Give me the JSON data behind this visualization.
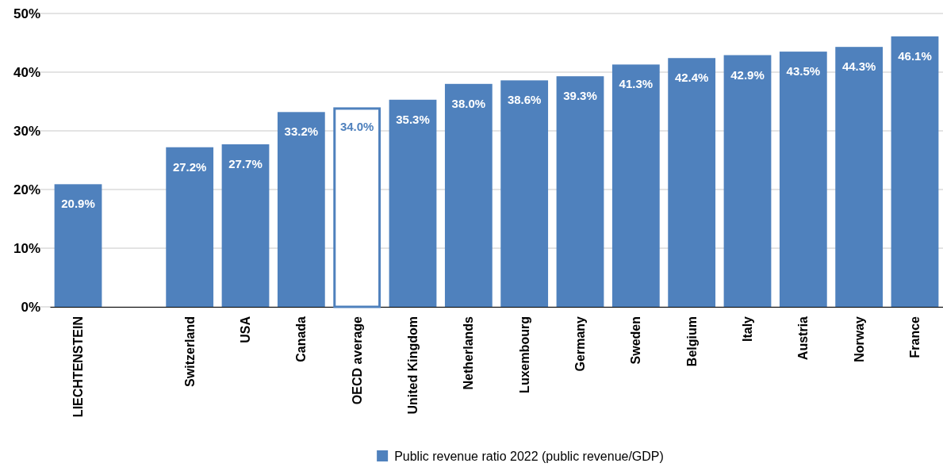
{
  "chart_data": {
    "type": "bar",
    "categories": [
      "LIECHTENSTEIN",
      null,
      "Switzerland",
      "USA",
      "Canada",
      "OECD average",
      "United Kingdom",
      "Netherlands",
      "Luxembourg",
      "Germany",
      "Sweden",
      "Belgium",
      "Italy",
      "Austria",
      "Norway",
      "France"
    ],
    "series": [
      {
        "name": "Public revenue ratio 2022 (public revenue/GDP)",
        "color": "#4f81bd",
        "values": [
          20.9,
          null,
          27.2,
          27.7,
          33.2,
          34.0,
          35.3,
          38.0,
          38.6,
          39.3,
          41.3,
          42.4,
          42.9,
          43.5,
          44.3,
          46.1
        ],
        "value_labels": [
          "20.9%",
          null,
          "27.2%",
          "27.7%",
          "33.2%",
          "34.0%",
          "35.3%",
          "38.0%",
          "38.6%",
          "39.3%",
          "41.3%",
          "42.4%",
          "42.9%",
          "43.5%",
          "44.3%",
          "46.1%"
        ],
        "colors": [
          "#4f81bd",
          null,
          "#4f81bd",
          "#4f81bd",
          "#4f81bd",
          "#ffffff",
          "#4f81bd",
          "#4f81bd",
          "#4f81bd",
          "#4f81bd",
          "#4f81bd",
          "#4f81bd",
          "#4f81bd",
          "#4f81bd",
          "#4f81bd",
          "#4f81bd"
        ]
      }
    ],
    "ylim": [
      0,
      50
    ],
    "yticks": [
      {
        "value": 0,
        "label": "0%"
      },
      {
        "value": 10,
        "label": "10%"
      },
      {
        "value": 20,
        "label": "20%"
      },
      {
        "value": 30,
        "label": "30%"
      },
      {
        "value": 40,
        "label": "40%"
      },
      {
        "value": 50,
        "label": "50%"
      }
    ],
    "grid": "y",
    "legend": "bottom"
  }
}
